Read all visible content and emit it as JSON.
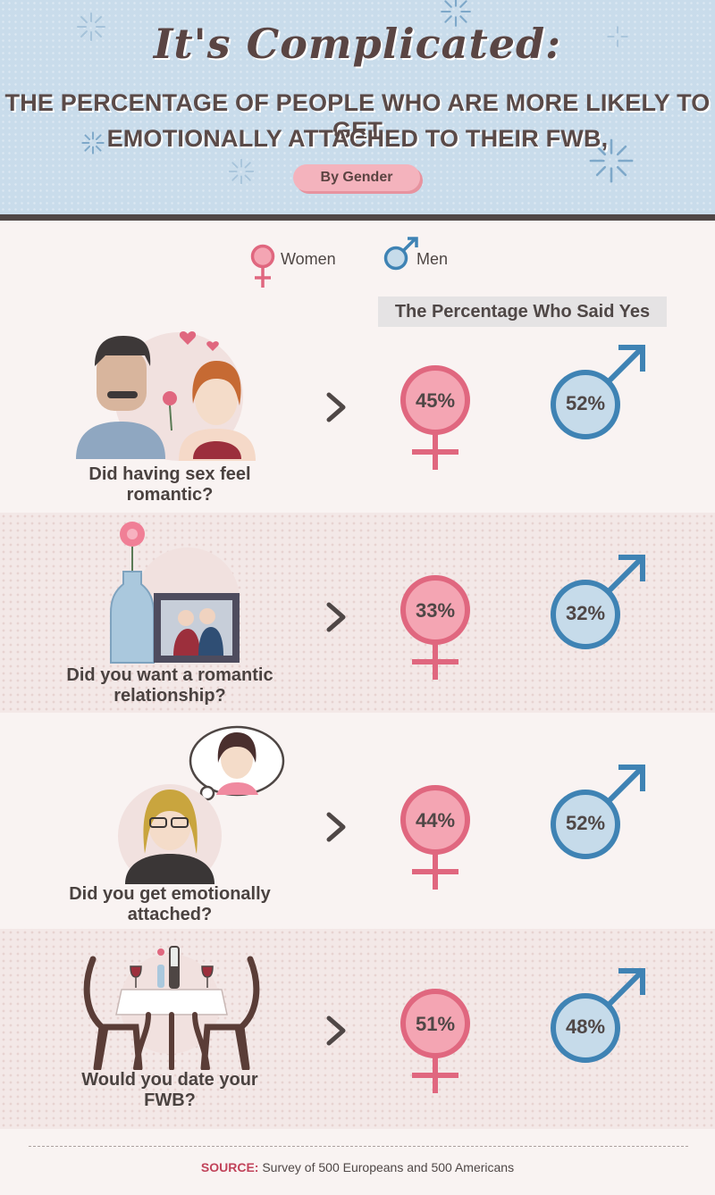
{
  "header": {
    "script_title": "It's Complicated:",
    "subtitle_line1": "THE PERCENTAGE OF PEOPLE WHO ARE MORE LIKELY TO GET",
    "subtitle_line2": "EMOTIONALLY ATTACHED TO THEIR FWB,",
    "pill": "By Gender"
  },
  "legend": {
    "women": "Women",
    "men": "Men"
  },
  "column_label": "The Percentage Who Said Yes",
  "colors": {
    "women": "#e0677f",
    "women_fill": "#f4a5b3",
    "men": "#3f83b4",
    "men_fill": "#c6dbea"
  },
  "chart_data": {
    "type": "table",
    "title": "The Percentage Who Said Yes",
    "columns": [
      "Women",
      "Men"
    ],
    "units": "%",
    "rows": [
      {
        "question_line1": "Did having sex feel",
        "question_line2": "romantic?",
        "women": 45,
        "men": 52,
        "women_label": "45%",
        "men_label": "52%"
      },
      {
        "question_line1": "Did you want a romantic",
        "question_line2": "relationship?",
        "women": 33,
        "men": 32,
        "women_label": "33%",
        "men_label": "32%"
      },
      {
        "question_line1": "Did you get emotionally",
        "question_line2": "attached?",
        "women": 44,
        "men": 52,
        "women_label": "44%",
        "men_label": "52%"
      },
      {
        "question_line1": "Would you date your",
        "question_line2": "FWB?",
        "women": 51,
        "men": 48,
        "women_label": "51%",
        "men_label": "48%"
      }
    ]
  },
  "source": {
    "label": "SOURCE:",
    "text": "Survey of 500 Europeans and 500 Americans"
  }
}
